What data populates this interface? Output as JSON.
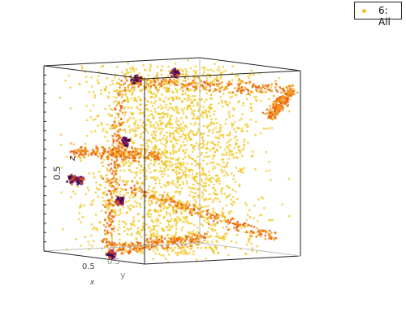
{
  "chart_data": {
    "type": "scatter",
    "dimensions": 3,
    "legend": {
      "entries": [
        {
          "label": "6: All",
          "color": "#f0c419"
        }
      ],
      "placement": "top-right"
    },
    "axes": {
      "x": {
        "label": "x",
        "ticks": [
          "0.5"
        ]
      },
      "y": {
        "label": "y",
        "ticks": [
          "0.5"
        ]
      },
      "z": {
        "label": "z",
        "ticks": [
          "0.5"
        ]
      }
    },
    "ranges": {
      "x": [
        0,
        1
      ],
      "y": [
        0,
        1
      ],
      "z": [
        0,
        1
      ]
    },
    "grid": false,
    "colors": {
      "points": "#f0c419",
      "points_dense": "#e8600a",
      "clusters": "#3a0b55",
      "box": "#222222"
    },
    "clusters": [
      {
        "x": 0.2,
        "y": 0.05,
        "z": 0.4
      },
      {
        "x": 0.28,
        "y": 0.05,
        "z": 0.4
      },
      {
        "x": 0.6,
        "y": 0.1,
        "z": 0.31
      },
      {
        "x": 0.5,
        "y": 0.2,
        "z": 0.62
      },
      {
        "x": 0.45,
        "y": 0.55,
        "z": 0.97
      },
      {
        "x": 0.3,
        "y": 0.4,
        "z": 0.93
      },
      {
        "x": 0.6,
        "y": 0.05,
        "z": 0.02
      }
    ]
  }
}
